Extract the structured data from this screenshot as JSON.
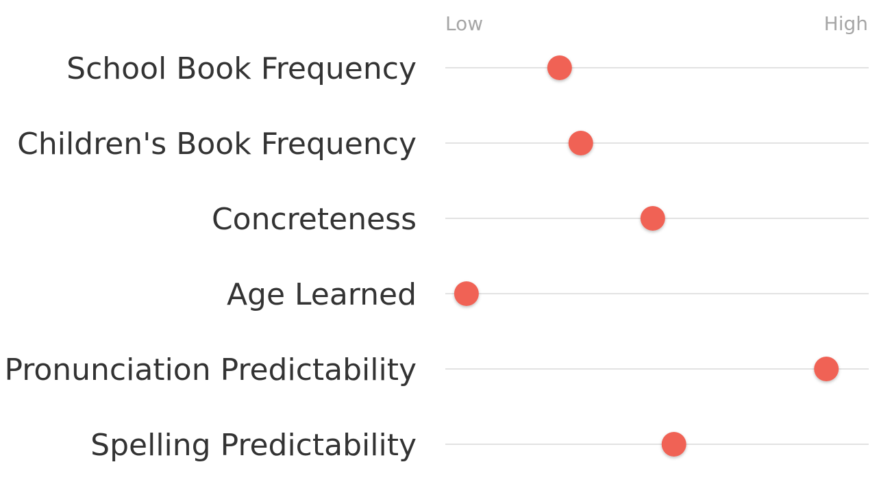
{
  "chart_data": {
    "type": "scatter",
    "scale": {
      "low_label": "Low",
      "high_label": "High",
      "range": [
        0,
        1
      ]
    },
    "marker_color": "#f06254",
    "rows": [
      {
        "label": "School Book Frequency",
        "value": 0.27
      },
      {
        "label": "Children's Book Frequency",
        "value": 0.32
      },
      {
        "label": "Concreteness",
        "value": 0.49
      },
      {
        "label": "Age Learned",
        "value": 0.05
      },
      {
        "label": "Pronunciation Predictability",
        "value": 0.9
      },
      {
        "label": "Spelling Predictability",
        "value": 0.54
      }
    ]
  }
}
